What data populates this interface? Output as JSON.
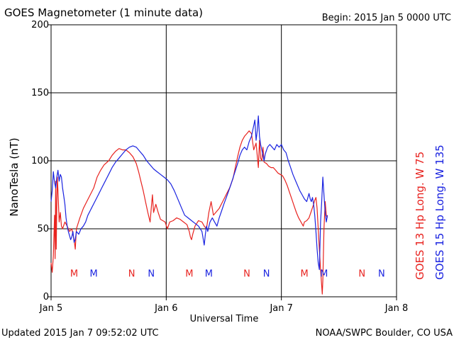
{
  "header": {
    "title": "GOES Magnetometer (1 minute data)",
    "begin_text": "Begin:  2015 Jan 5 0000 UTC"
  },
  "footer": {
    "updated_text": "Updated 2015 Jan  7 09:52:02 UTC",
    "credit_text": "NOAA/SWPC Boulder, CO USA"
  },
  "colors": {
    "goes13": "#e8231f",
    "goes15": "#1a23e0",
    "axes": "#000000",
    "background": "#ffffff"
  },
  "chart_data": {
    "type": "line",
    "title": "GOES Magnetometer (1 minute data)",
    "xlabel": "Universal Time",
    "ylabel": "NanoTesla (nT)",
    "xlim": [
      0,
      3
    ],
    "ylim": [
      0,
      200
    ],
    "x_ticks": [
      {
        "value": 0,
        "label": "Jan 5"
      },
      {
        "value": 1,
        "label": "Jan 6"
      },
      {
        "value": 2,
        "label": "Jan 7"
      },
      {
        "value": 3,
        "label": "Jan 8"
      }
    ],
    "y_ticks": [
      {
        "value": 0,
        "label": "0"
      },
      {
        "value": 50,
        "label": "50"
      },
      {
        "value": 100,
        "label": "100"
      },
      {
        "value": 150,
        "label": "150"
      },
      {
        "value": 200,
        "label": "200"
      }
    ],
    "grid": true,
    "legend_position": "right",
    "series": [
      {
        "name": "GOES 13 Hp  Long. W 75",
        "color": "#e8231f",
        "points": [
          [
            0.0,
            25
          ],
          [
            0.01,
            18
          ],
          [
            0.02,
            30
          ],
          [
            0.03,
            60
          ],
          [
            0.035,
            28
          ],
          [
            0.04,
            85
          ],
          [
            0.045,
            35
          ],
          [
            0.05,
            70
          ],
          [
            0.055,
            88
          ],
          [
            0.06,
            78
          ],
          [
            0.07,
            55
          ],
          [
            0.08,
            62
          ],
          [
            0.09,
            52
          ],
          [
            0.1,
            50
          ],
          [
            0.12,
            55
          ],
          [
            0.14,
            52
          ],
          [
            0.16,
            48
          ],
          [
            0.18,
            50
          ],
          [
            0.2,
            42
          ],
          [
            0.21,
            35
          ],
          [
            0.22,
            50
          ],
          [
            0.25,
            58
          ],
          [
            0.28,
            65
          ],
          [
            0.31,
            70
          ],
          [
            0.34,
            75
          ],
          [
            0.37,
            80
          ],
          [
            0.4,
            88
          ],
          [
            0.43,
            93
          ],
          [
            0.46,
            97
          ],
          [
            0.5,
            100
          ],
          [
            0.53,
            104
          ],
          [
            0.56,
            107
          ],
          [
            0.59,
            109
          ],
          [
            0.62,
            108
          ],
          [
            0.65,
            108
          ],
          [
            0.68,
            106
          ],
          [
            0.71,
            103
          ],
          [
            0.74,
            98
          ],
          [
            0.76,
            92
          ],
          [
            0.78,
            85
          ],
          [
            0.8,
            78
          ],
          [
            0.82,
            70
          ],
          [
            0.84,
            62
          ],
          [
            0.86,
            55
          ],
          [
            0.87,
            65
          ],
          [
            0.88,
            75
          ],
          [
            0.89,
            62
          ],
          [
            0.91,
            68
          ],
          [
            0.93,
            62
          ],
          [
            0.95,
            57
          ],
          [
            0.97,
            56
          ],
          [
            0.99,
            55
          ],
          [
            1.01,
            50
          ],
          [
            1.03,
            55
          ],
          [
            1.06,
            56
          ],
          [
            1.09,
            58
          ],
          [
            1.12,
            57
          ],
          [
            1.15,
            55
          ],
          [
            1.18,
            53
          ],
          [
            1.2,
            48
          ],
          [
            1.21,
            44
          ],
          [
            1.22,
            42
          ],
          [
            1.23,
            46
          ],
          [
            1.25,
            52
          ],
          [
            1.28,
            56
          ],
          [
            1.31,
            55
          ],
          [
            1.33,
            52
          ],
          [
            1.35,
            50
          ],
          [
            1.37,
            62
          ],
          [
            1.39,
            70
          ],
          [
            1.41,
            60
          ],
          [
            1.43,
            62
          ],
          [
            1.46,
            65
          ],
          [
            1.49,
            70
          ],
          [
            1.52,
            75
          ],
          [
            1.55,
            80
          ],
          [
            1.58,
            87
          ],
          [
            1.6,
            95
          ],
          [
            1.62,
            103
          ],
          [
            1.64,
            110
          ],
          [
            1.66,
            115
          ],
          [
            1.68,
            118
          ],
          [
            1.7,
            120
          ],
          [
            1.72,
            122
          ],
          [
            1.74,
            120
          ],
          [
            1.76,
            108
          ],
          [
            1.78,
            113
          ],
          [
            1.8,
            95
          ],
          [
            1.81,
            115
          ],
          [
            1.82,
            102
          ],
          [
            1.83,
            100
          ],
          [
            1.84,
            110
          ],
          [
            1.85,
            99
          ],
          [
            1.87,
            98
          ],
          [
            1.89,
            96
          ],
          [
            1.91,
            95
          ],
          [
            1.93,
            95
          ],
          [
            1.95,
            93
          ],
          [
            1.97,
            91
          ],
          [
            1.99,
            90
          ],
          [
            2.01,
            89
          ],
          [
            2.03,
            86
          ],
          [
            2.05,
            82
          ],
          [
            2.07,
            77
          ],
          [
            2.09,
            72
          ],
          [
            2.11,
            67
          ],
          [
            2.13,
            62
          ],
          [
            2.15,
            58
          ],
          [
            2.17,
            55
          ],
          [
            2.19,
            52
          ],
          [
            2.2,
            55
          ],
          [
            2.22,
            56
          ],
          [
            2.24,
            58
          ],
          [
            2.26,
            63
          ],
          [
            2.28,
            68
          ],
          [
            2.29,
            71
          ],
          [
            2.3,
            73
          ],
          [
            2.31,
            65
          ],
          [
            2.32,
            50
          ],
          [
            2.33,
            35
          ],
          [
            2.34,
            20
          ],
          [
            2.35,
            8
          ],
          [
            2.355,
            2
          ],
          [
            2.36,
            12
          ],
          [
            2.37,
            50
          ],
          [
            2.38,
            70
          ],
          [
            2.39,
            60
          ],
          [
            2.4,
            58
          ]
        ]
      },
      {
        "name": "GOES 15 Hp  Long. W 135",
        "color": "#1a23e0",
        "points": [
          [
            0.0,
            70
          ],
          [
            0.01,
            78
          ],
          [
            0.02,
            92
          ],
          [
            0.03,
            84
          ],
          [
            0.04,
            80
          ],
          [
            0.05,
            88
          ],
          [
            0.06,
            93
          ],
          [
            0.07,
            85
          ],
          [
            0.08,
            90
          ],
          [
            0.09,
            88
          ],
          [
            0.1,
            80
          ],
          [
            0.11,
            74
          ],
          [
            0.12,
            68
          ],
          [
            0.13,
            58
          ],
          [
            0.14,
            52
          ],
          [
            0.15,
            48
          ],
          [
            0.16,
            45
          ],
          [
            0.17,
            42
          ],
          [
            0.18,
            44
          ],
          [
            0.19,
            48
          ],
          [
            0.2,
            40
          ],
          [
            0.21,
            42
          ],
          [
            0.22,
            48
          ],
          [
            0.24,
            46
          ],
          [
            0.26,
            50
          ],
          [
            0.28,
            52
          ],
          [
            0.3,
            55
          ],
          [
            0.32,
            60
          ],
          [
            0.35,
            65
          ],
          [
            0.38,
            70
          ],
          [
            0.41,
            75
          ],
          [
            0.44,
            80
          ],
          [
            0.47,
            85
          ],
          [
            0.5,
            90
          ],
          [
            0.53,
            95
          ],
          [
            0.56,
            99
          ],
          [
            0.59,
            102
          ],
          [
            0.62,
            105
          ],
          [
            0.65,
            108
          ],
          [
            0.68,
            110
          ],
          [
            0.71,
            111
          ],
          [
            0.74,
            110
          ],
          [
            0.77,
            107
          ],
          [
            0.8,
            104
          ],
          [
            0.83,
            100
          ],
          [
            0.86,
            97
          ],
          [
            0.89,
            94
          ],
          [
            0.92,
            92
          ],
          [
            0.95,
            90
          ],
          [
            0.98,
            88
          ],
          [
            1.01,
            86
          ],
          [
            1.04,
            83
          ],
          [
            1.07,
            78
          ],
          [
            1.1,
            72
          ],
          [
            1.13,
            66
          ],
          [
            1.16,
            60
          ],
          [
            1.19,
            58
          ],
          [
            1.22,
            56
          ],
          [
            1.25,
            54
          ],
          [
            1.28,
            52
          ],
          [
            1.31,
            48
          ],
          [
            1.33,
            38
          ],
          [
            1.34,
            46
          ],
          [
            1.35,
            52
          ],
          [
            1.36,
            48
          ],
          [
            1.38,
            55
          ],
          [
            1.4,
            58
          ],
          [
            1.42,
            55
          ],
          [
            1.44,
            52
          ],
          [
            1.46,
            58
          ],
          [
            1.48,
            63
          ],
          [
            1.5,
            68
          ],
          [
            1.53,
            75
          ],
          [
            1.56,
            82
          ],
          [
            1.59,
            90
          ],
          [
            1.62,
            98
          ],
          [
            1.64,
            104
          ],
          [
            1.66,
            108
          ],
          [
            1.68,
            110
          ],
          [
            1.7,
            108
          ],
          [
            1.72,
            114
          ],
          [
            1.74,
            118
          ],
          [
            1.76,
            126
          ],
          [
            1.77,
            130
          ],
          [
            1.78,
            115
          ],
          [
            1.79,
            122
          ],
          [
            1.8,
            133
          ],
          [
            1.81,
            118
          ],
          [
            1.82,
            112
          ],
          [
            1.83,
            108
          ],
          [
            1.84,
            104
          ],
          [
            1.85,
            100
          ],
          [
            1.86,
            105
          ],
          [
            1.88,
            110
          ],
          [
            1.9,
            112
          ],
          [
            1.92,
            110
          ],
          [
            1.94,
            108
          ],
          [
            1.96,
            112
          ],
          [
            1.98,
            110
          ],
          [
            2.0,
            112
          ],
          [
            2.02,
            108
          ],
          [
            2.04,
            106
          ],
          [
            2.06,
            100
          ],
          [
            2.08,
            95
          ],
          [
            2.1,
            90
          ],
          [
            2.12,
            86
          ],
          [
            2.14,
            82
          ],
          [
            2.16,
            78
          ],
          [
            2.18,
            75
          ],
          [
            2.2,
            72
          ],
          [
            2.22,
            70
          ],
          [
            2.24,
            76
          ],
          [
            2.25,
            72
          ],
          [
            2.26,
            70
          ],
          [
            2.27,
            73
          ],
          [
            2.28,
            68
          ],
          [
            2.29,
            60
          ],
          [
            2.3,
            48
          ],
          [
            2.31,
            35
          ],
          [
            2.32,
            25
          ],
          [
            2.33,
            20
          ],
          [
            2.34,
            55
          ],
          [
            2.35,
            70
          ],
          [
            2.36,
            88
          ],
          [
            2.37,
            75
          ],
          [
            2.38,
            62
          ],
          [
            2.39,
            55
          ],
          [
            2.4,
            60
          ]
        ]
      }
    ],
    "markers": [
      {
        "x": 0.2,
        "label": "M",
        "series": "GOES 13"
      },
      {
        "x": 0.37,
        "label": "M",
        "series": "GOES 15"
      },
      {
        "x": 0.7,
        "label": "N",
        "series": "GOES 13"
      },
      {
        "x": 0.87,
        "label": "N",
        "series": "GOES 15"
      },
      {
        "x": 1.2,
        "label": "M",
        "series": "GOES 13"
      },
      {
        "x": 1.37,
        "label": "M",
        "series": "GOES 15"
      },
      {
        "x": 1.7,
        "label": "N",
        "series": "GOES 13"
      },
      {
        "x": 1.87,
        "label": "N",
        "series": "GOES 15"
      },
      {
        "x": 2.2,
        "label": "M",
        "series": "GOES 13"
      },
      {
        "x": 2.37,
        "label": "M",
        "series": "GOES 15"
      },
      {
        "x": 2.7,
        "label": "N",
        "series": "GOES 13"
      },
      {
        "x": 2.87,
        "label": "N",
        "series": "GOES 15"
      }
    ],
    "marker_level": 18
  }
}
